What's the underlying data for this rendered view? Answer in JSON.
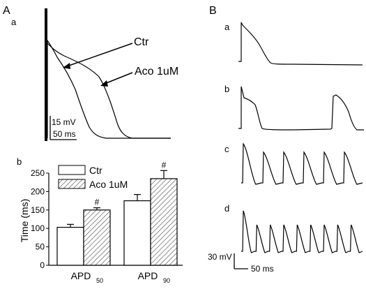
{
  "panels": {
    "A": "A",
    "B": "B",
    "Aa": "a",
    "Ab": "b",
    "Ba": "a",
    "Bb": "b",
    "Bc": "c",
    "Bd": "d"
  },
  "traces_A": {
    "label_ctr": "Ctr",
    "label_aco": "Aco 1uM",
    "scale_mv": "15 mV",
    "scale_ms": "50 ms"
  },
  "traces_B": {
    "scale_mv": "30 mV",
    "scale_ms": "50 ms"
  },
  "chart_data": {
    "type": "bar",
    "categories": [
      "APD50",
      "APD90"
    ],
    "category_main": [
      "APD",
      "APD"
    ],
    "category_sub": [
      "50",
      "90"
    ],
    "series": [
      {
        "name": "Ctr",
        "values": [
          103,
          175
        ],
        "errors": [
          8,
          17
        ],
        "fill": "#ffffff",
        "marks": [
          "",
          ""
        ]
      },
      {
        "name": "Aco 1uM",
        "values": [
          150,
          235
        ],
        "errors": [
          6,
          22
        ],
        "fill": "hatched",
        "marks": [
          "#",
          "#"
        ]
      }
    ],
    "ylabel": "Time (ms)",
    "ylim": [
      0,
      250
    ],
    "yticks": [
      0,
      50,
      100,
      150,
      200,
      250
    ],
    "legend_placement": "top-left"
  }
}
